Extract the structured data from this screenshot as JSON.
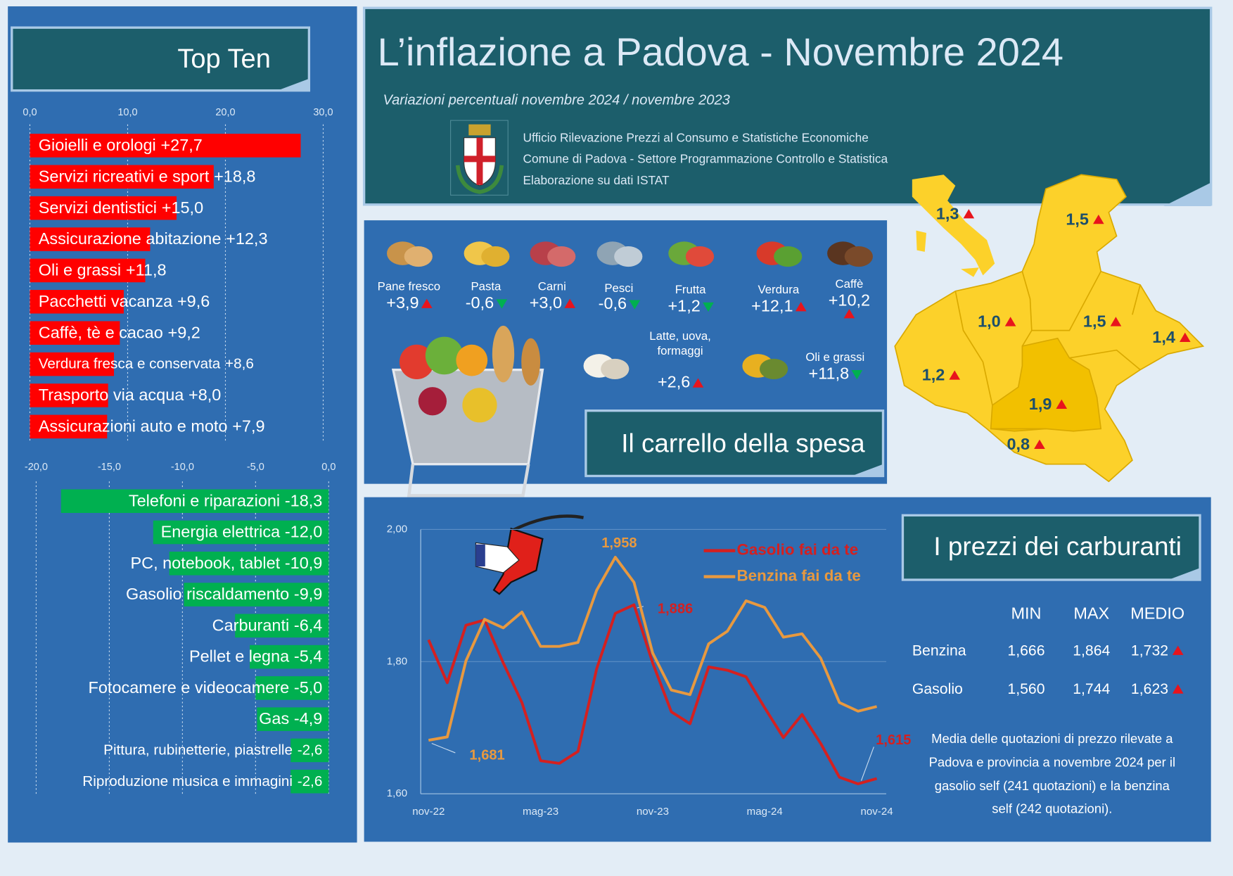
{
  "header": {
    "title": "L’inflazione a Padova - Novembre 2024",
    "subtitle": "Variazioni percentuali novembre 2024 / novembre 2023",
    "credits": [
      "Ufficio Rilevazione Prezzi al Consumo e Statistiche Economiche",
      "Comune di Padova -  Settore Programmazione Controllo e Statistica",
      "Elaborazione su dati ISTAT"
    ]
  },
  "sections": {
    "top_ten": "Top Ten",
    "cart": "Il carrello della spesa",
    "fuel": "I prezzi dei carburanti"
  },
  "chart_data": [
    {
      "type": "bar",
      "orientation": "horizontal",
      "categories": [
        "Gioielli e orologi",
        "Servizi ricreativi e sport",
        "Servizi dentistici",
        "Assicurazione abitazione",
        "Oli e grassi",
        "Pacchetti vacanza",
        "Caffè, tè e cacao",
        "Verdura fresca e conservata",
        "Trasporto via acqua",
        "Assicurazioni auto e moto"
      ],
      "values": [
        27.7,
        18.8,
        15.0,
        12.3,
        11.8,
        9.6,
        9.2,
        8.6,
        8.0,
        7.9
      ],
      "value_labels": [
        "+27,7",
        "+18,8",
        "+15,0",
        "+12,3",
        "+11,8",
        "+9,6",
        "+9,2",
        "+8,6",
        "+8,0",
        "+7,9"
      ],
      "color": "#ff0000",
      "xlim": [
        0,
        30
      ],
      "xticks": [
        {
          "value": 0,
          "label": "0,0"
        },
        {
          "value": 10,
          "label": "10,0"
        },
        {
          "value": 20,
          "label": "20,0"
        },
        {
          "value": 30,
          "label": "30,0"
        }
      ],
      "grid": true
    },
    {
      "type": "bar",
      "orientation": "horizontal",
      "categories": [
        "Telefoni e riparazioni",
        "Energia elettrica",
        "PC, notebook, tablet",
        "Gasolio riscaldamento",
        "Carburanti",
        "Pellet e legna",
        "Fotocamere e videocamere",
        "Gas",
        "Pittura, rubinetterie, piastrelle",
        "Riproduzione musica e immagini"
      ],
      "values": [
        -18.3,
        -12.0,
        -10.9,
        -9.9,
        -6.4,
        -5.4,
        -5.0,
        -4.9,
        -2.6,
        -2.6
      ],
      "value_labels": [
        "-18,3",
        "-12,0",
        "-10,9",
        "-9,9",
        "-6,4",
        "-5,4",
        "-5,0",
        "-4,9",
        "-2,6",
        "-2,6"
      ],
      "color": "#00b050",
      "xlim": [
        -20,
        0
      ],
      "xticks": [
        {
          "value": -20,
          "label": "-20,0"
        },
        {
          "value": -15,
          "label": "-15,0"
        },
        {
          "value": -10,
          "label": "-10,0"
        },
        {
          "value": -5,
          "label": "-5,0"
        },
        {
          "value": 0,
          "label": "0,0"
        }
      ],
      "grid": true
    },
    {
      "type": "line",
      "categories": [
        "nov-22",
        null,
        null,
        null,
        null,
        null,
        "mag-23",
        null,
        null,
        null,
        null,
        null,
        "nov-23",
        null,
        null,
        null,
        null,
        null,
        "mag-24",
        null,
        null,
        null,
        null,
        null,
        "nov-24"
      ],
      "series": [
        {
          "name": "Gasolio fai da te",
          "color": "#d42020",
          "values": [
            1.833,
            1.768,
            1.855,
            1.863,
            1.798,
            1.738,
            1.65,
            1.646,
            1.664,
            1.789,
            1.873,
            1.886,
            1.798,
            1.724,
            1.706,
            1.792,
            1.787,
            1.777,
            1.73,
            1.685,
            1.72,
            1.676,
            1.625,
            1.615,
            1.623
          ],
          "value_labels": [
            null,
            null,
            null,
            null,
            null,
            null,
            null,
            null,
            null,
            null,
            null,
            "1,886",
            null,
            null,
            null,
            null,
            null,
            null,
            null,
            null,
            null,
            null,
            null,
            "1,615",
            null
          ]
        },
        {
          "name": "Benzina fai da te",
          "color": "#e8993f",
          "values": [
            1.681,
            1.686,
            1.801,
            1.864,
            1.851,
            1.875,
            1.823,
            1.823,
            1.829,
            1.908,
            1.958,
            1.92,
            1.813,
            1.757,
            1.75,
            1.827,
            1.846,
            1.892,
            1.882,
            1.837,
            1.842,
            1.805,
            1.738,
            1.725,
            1.732
          ],
          "value_labels": [
            "1,681",
            null,
            null,
            null,
            null,
            null,
            null,
            null,
            null,
            null,
            "1,958",
            null,
            null,
            null,
            null,
            null,
            null,
            null,
            null,
            null,
            null,
            null,
            null,
            null,
            null
          ]
        }
      ],
      "ylim": [
        1.6,
        2.0
      ],
      "yticks": [
        {
          "value": 1.6,
          "label": "1,60"
        },
        {
          "value": 1.8,
          "label": "1,80"
        },
        {
          "value": 2.0,
          "label": "2,00"
        }
      ],
      "grid": true
    }
  ],
  "cart": {
    "items": [
      {
        "name": [
          "Pane fresco"
        ],
        "value": "+3,9",
        "trend": "up"
      },
      {
        "name": [
          "Pasta"
        ],
        "value": "-0,6",
        "trend": "down"
      },
      {
        "name": [
          "Carni"
        ],
        "value": "+3,0",
        "trend": "up"
      },
      {
        "name": [
          "Pesci"
        ],
        "value": "-0,6",
        "trend": "down"
      },
      {
        "name": [
          "Frutta"
        ],
        "value": "+1,2",
        "trend": "down"
      },
      {
        "name": [
          "Verdura"
        ],
        "value": "+12,1",
        "trend": "up"
      },
      {
        "name": [
          "Caffè"
        ],
        "value": "+10,2",
        "trend": "up"
      },
      {
        "name": [
          "Latte, uova,",
          "formaggi"
        ],
        "value": "+2,6",
        "trend": "up"
      },
      {
        "name": [
          "Oli e grassi"
        ],
        "value": "+11,8",
        "trend": "down"
      }
    ]
  },
  "map": {
    "labels": [
      {
        "text": "1,3",
        "trend": "up"
      },
      {
        "text": "1,5",
        "trend": "up"
      },
      {
        "text": "1,0",
        "trend": "up"
      },
      {
        "text": "1,5",
        "trend": "up"
      },
      {
        "text": "1,4",
        "trend": "up"
      },
      {
        "text": "1,2",
        "trend": "up"
      },
      {
        "text": "1,9",
        "trend": "up"
      },
      {
        "text": "0,8",
        "trend": "up"
      }
    ]
  },
  "fuel_table": {
    "columns": [
      "MIN",
      "MAX",
      "MEDIO"
    ],
    "rows": [
      {
        "label": "Benzina",
        "cells": [
          "1,666",
          "1,864",
          "1,732"
        ],
        "trend": "up"
      },
      {
        "label": "Gasolio",
        "cells": [
          "1,560",
          "1,744",
          "1,623"
        ],
        "trend": "up"
      }
    ]
  },
  "fuel_note": [
    "Media delle quotazioni di prezzo rilevate a",
    "Padova e provincia a novembre 2024 per il",
    "gasolio self (241 quotazioni) e la benzina",
    "self (242 quotazioni)."
  ]
}
